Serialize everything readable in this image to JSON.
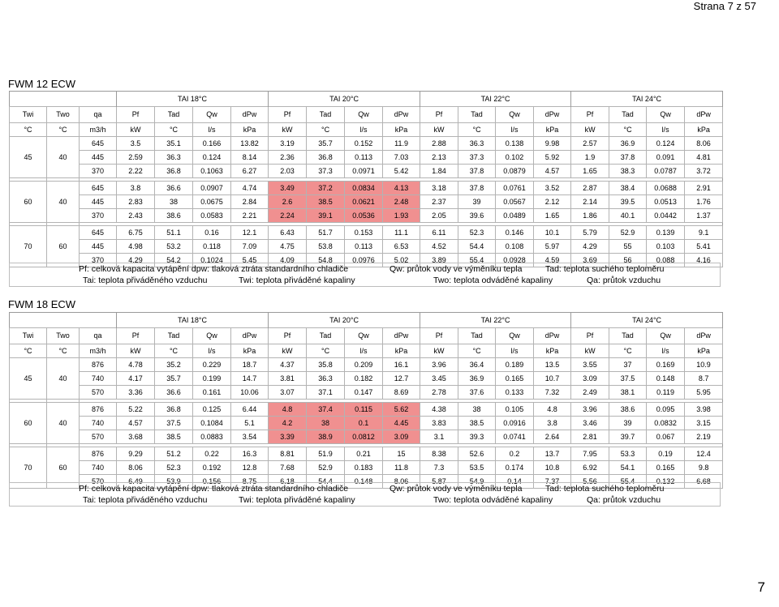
{
  "page": {
    "header": "Strana 7 z 57",
    "number": "7"
  },
  "sections": [
    {
      "title": "FWM 12 ECW",
      "group_headers": [
        "TAI 18°C",
        "TAI 20°C",
        "TAI 22°C",
        "TAI 24°C"
      ],
      "col_headers": [
        "Twi",
        "Two",
        "qa",
        "Pf",
        "Tad",
        "Qw",
        "dPw",
        "Pf",
        "Tad",
        "Qw",
        "dPw",
        "Pf",
        "Tad",
        "Qw",
        "dPw",
        "Pf",
        "Tad",
        "Qw",
        "dPw"
      ],
      "unit_headers": [
        "°C",
        "°C",
        "m3/h",
        "kW",
        "°C",
        "l/s",
        "kPa",
        "kW",
        "°C",
        "l/s",
        "kPa",
        "kW",
        "°C",
        "l/s",
        "kPa",
        "kW",
        "°C",
        "l/s",
        "kPa"
      ],
      "groups": [
        {
          "twi": "45",
          "two": "40",
          "rows": [
            [
              "645",
              "3.5",
              "35.1",
              "0.166",
              "13.82",
              "3.19",
              "35.7",
              "0.152",
              "11.9",
              "2.88",
              "36.3",
              "0.138",
              "9.98",
              "2.57",
              "36.9",
              "0.124",
              "8.06"
            ],
            [
              "445",
              "2.59",
              "36.3",
              "0.124",
              "8.14",
              "2.36",
              "36.8",
              "0.113",
              "7.03",
              "2.13",
              "37.3",
              "0.102",
              "5.92",
              "1.9",
              "37.8",
              "0.091",
              "4.81"
            ],
            [
              "370",
              "2.22",
              "36.8",
              "0.1063",
              "6.27",
              "2.03",
              "37.3",
              "0.0971",
              "5.42",
              "1.84",
              "37.8",
              "0.0879",
              "4.57",
              "1.65",
              "38.3",
              "0.0787",
              "3.72"
            ]
          ]
        },
        {
          "twi": "60",
          "two": "40",
          "rows": [
            [
              "645",
              "3.8",
              "36.6",
              "0.0907",
              "4.74",
              "3.49",
              "37.2",
              "0.0834",
              "4.13",
              "3.18",
              "37.8",
              "0.0761",
              "3.52",
              "2.87",
              "38.4",
              "0.0688",
              "2.91"
            ],
            [
              "445",
              "2.83",
              "38",
              "0.0675",
              "2.84",
              "2.6",
              "38.5",
              "0.0621",
              "2.48",
              "2.37",
              "39",
              "0.0567",
              "2.12",
              "2.14",
              "39.5",
              "0.0513",
              "1.76"
            ],
            [
              "370",
              "2.43",
              "38.6",
              "0.0583",
              "2.21",
              "2.24",
              "39.1",
              "0.0536",
              "1.93",
              "2.05",
              "39.6",
              "0.0489",
              "1.65",
              "1.86",
              "40.1",
              "0.0442",
              "1.37"
            ]
          ]
        },
        {
          "twi": "70",
          "two": "60",
          "rows": [
            [
              "645",
              "6.75",
              "51.1",
              "0.16",
              "12.1",
              "6.43",
              "51.7",
              "0.153",
              "11.1",
              "6.11",
              "52.3",
              "0.146",
              "10.1",
              "5.79",
              "52.9",
              "0.139",
              "9.1"
            ],
            [
              "445",
              "4.98",
              "53.2",
              "0.118",
              "7.09",
              "4.75",
              "53.8",
              "0.113",
              "6.53",
              "4.52",
              "54.4",
              "0.108",
              "5.97",
              "4.29",
              "55",
              "0.103",
              "5.41"
            ],
            [
              "370",
              "4.29",
              "54.2",
              "0.1024",
              "5.45",
              "4.09",
              "54.8",
              "0.0976",
              "5.02",
              "3.89",
              "55.4",
              "0.0928",
              "4.59",
              "3.69",
              "56",
              "0.088",
              "4.16"
            ]
          ]
        }
      ],
      "legend": {
        "line1": [
          "Pf: celková kapacita vytápění dpw: tlaková ztráta standardního chladiče",
          "Qw: průtok vody ve výměníku tepla",
          "Tad: teplota suchého teploměru"
        ],
        "line2": [
          "Tai: teplota přiváděného vzduchu",
          "Twi: teplota přiváděné kapaliny",
          "Two: teplota odváděné kapaliny",
          "Qa: průtok vzduchu"
        ]
      }
    },
    {
      "title": "FWM 18 ECW",
      "group_headers": [
        "TAI 18°C",
        "TAI 20°C",
        "TAI 22°C",
        "TAI 24°C"
      ],
      "col_headers": [
        "Twi",
        "Two",
        "qa",
        "Pf",
        "Tad",
        "Qw",
        "dPw",
        "Pf",
        "Tad",
        "Qw",
        "dPw",
        "Pf",
        "Tad",
        "Qw",
        "dPw",
        "Pf",
        "Tad",
        "Qw",
        "dPw"
      ],
      "unit_headers": [
        "°C",
        "°C",
        "m3/h",
        "kW",
        "°C",
        "l/s",
        "kPa",
        "kW",
        "°C",
        "l/s",
        "kPa",
        "kW",
        "°C",
        "l/s",
        "kPa",
        "kW",
        "°C",
        "l/s",
        "kPa"
      ],
      "groups": [
        {
          "twi": "45",
          "two": "40",
          "rows": [
            [
              "876",
              "4.78",
              "35.2",
              "0.229",
              "18.7",
              "4.37",
              "35.8",
              "0.209",
              "16.1",
              "3.96",
              "36.4",
              "0.189",
              "13.5",
              "3.55",
              "37",
              "0.169",
              "10.9"
            ],
            [
              "740",
              "4.17",
              "35.7",
              "0.199",
              "14.7",
              "3.81",
              "36.3",
              "0.182",
              "12.7",
              "3.45",
              "36.9",
              "0.165",
              "10.7",
              "3.09",
              "37.5",
              "0.148",
              "8.7"
            ],
            [
              "570",
              "3.36",
              "36.6",
              "0.161",
              "10.06",
              "3.07",
              "37.1",
              "0.147",
              "8.69",
              "2.78",
              "37.6",
              "0.133",
              "7.32",
              "2.49",
              "38.1",
              "0.119",
              "5.95"
            ]
          ]
        },
        {
          "twi": "60",
          "two": "40",
          "rows": [
            [
              "876",
              "5.22",
              "36.8",
              "0.125",
              "6.44",
              "4.8",
              "37.4",
              "0.115",
              "5.62",
              "4.38",
              "38",
              "0.105",
              "4.8",
              "3.96",
              "38.6",
              "0.095",
              "3.98"
            ],
            [
              "740",
              "4.57",
              "37.5",
              "0.1084",
              "5.1",
              "4.2",
              "38",
              "0.1",
              "4.45",
              "3.83",
              "38.5",
              "0.0916",
              "3.8",
              "3.46",
              "39",
              "0.0832",
              "3.15"
            ],
            [
              "570",
              "3.68",
              "38.5",
              "0.0883",
              "3.54",
              "3.39",
              "38.9",
              "0.0812",
              "3.09",
              "3.1",
              "39.3",
              "0.0741",
              "2.64",
              "2.81",
              "39.7",
              "0.067",
              "2.19"
            ]
          ]
        },
        {
          "twi": "70",
          "two": "60",
          "rows": [
            [
              "876",
              "9.29",
              "51.2",
              "0.22",
              "16.3",
              "8.81",
              "51.9",
              "0.21",
              "15",
              "8.38",
              "52.6",
              "0.2",
              "13.7",
              "7.95",
              "53.3",
              "0.19",
              "12.4"
            ],
            [
              "740",
              "8.06",
              "52.3",
              "0.192",
              "12.8",
              "7.68",
              "52.9",
              "0.183",
              "11.8",
              "7.3",
              "53.5",
              "0.174",
              "10.8",
              "6.92",
              "54.1",
              "0.165",
              "9.8"
            ],
            [
              "570",
              "6.49",
              "53.9",
              "0.156",
              "8.75",
              "6.18",
              "54.4",
              "0.148",
              "8.06",
              "5.87",
              "54.9",
              "0.14",
              "7.37",
              "5.56",
              "55.4",
              "0.132",
              "6.68"
            ]
          ]
        }
      ],
      "legend": {
        "line1": [
          "Pf: celková kapacita vytápění dpw: tlaková ztráta standardního chladiče",
          "Qw: průtok vody ve výměníku tepla",
          "Tad: teplota suchého teploměru"
        ],
        "line2": [
          "Tai: teplota přiváděného vzduchu",
          "Twi: teplota přiváděné kapaliny",
          "Two: teplota odváděné kapaliny",
          "Qa: průtok vzduchu"
        ]
      }
    }
  ],
  "highlight": {
    "color": "#f09090",
    "group_index": 1,
    "column_range": [
      5,
      8
    ]
  }
}
